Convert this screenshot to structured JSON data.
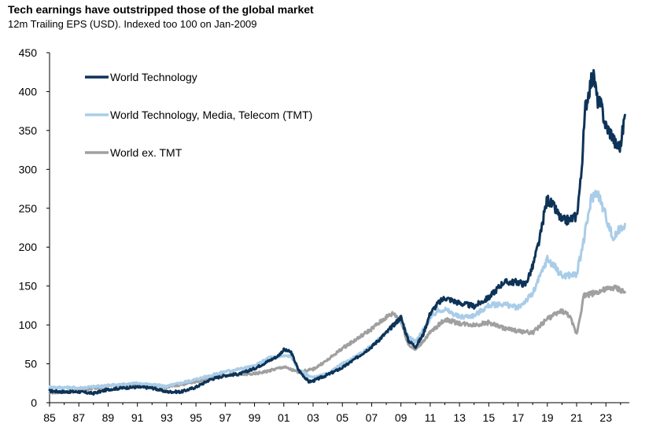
{
  "chart_data": {
    "type": "line",
    "title": "Tech earnings have outstripped those of the global market",
    "subtitle": "12m Trailing EPS (USD). Indexed too 100 on Jan-2009",
    "xlabel": "",
    "ylabel": "",
    "ylim": [
      0,
      450
    ],
    "xlim": [
      1985,
      2024.6
    ],
    "yticks": [
      "0",
      "50",
      "100",
      "150",
      "200",
      "250",
      "300",
      "350",
      "400",
      "450"
    ],
    "xticks": [
      "85",
      "87",
      "89",
      "91",
      "93",
      "95",
      "97",
      "99",
      "01",
      "03",
      "05",
      "07",
      "09",
      "11",
      "13",
      "15",
      "17",
      "19",
      "21",
      "23"
    ],
    "legend_position": "top-left",
    "grid": false,
    "series": [
      {
        "name": "World Technology",
        "color": "#0d3357",
        "x": [
          1985,
          1986,
          1987,
          1988,
          1989,
          1990,
          1991,
          1992,
          1993,
          1994,
          1995,
          1996,
          1997,
          1998,
          1999,
          2000,
          2000.6,
          2001,
          2001.5,
          2002,
          2002.7,
          2003,
          2004,
          2005,
          2006,
          2007,
          2008,
          2008.5,
          2009,
          2009.5,
          2010,
          2010.5,
          2011,
          2011.5,
          2012,
          2013,
          2014,
          2015,
          2016,
          2017,
          2017.5,
          2018,
          2018.5,
          2018.8,
          2019,
          2019.5,
          2020,
          2020.5,
          2021,
          2021.3,
          2021.6,
          2022,
          2022.2,
          2022.4,
          2022.7,
          2023,
          2023.4,
          2023.7,
          2024,
          2024.3
        ],
        "values": [
          15,
          14,
          14,
          12,
          17,
          19,
          20,
          19,
          14,
          14,
          20,
          30,
          35,
          37,
          44,
          54,
          60,
          68,
          65,
          42,
          27,
          28,
          36,
          45,
          58,
          72,
          90,
          100,
          110,
          80,
          72,
          87,
          115,
          127,
          135,
          128,
          124,
          135,
          155,
          155,
          152,
          175,
          212,
          245,
          262,
          250,
          234,
          235,
          240,
          290,
          380,
          415,
          418,
          390,
          380,
          355,
          345,
          330,
          330,
          370
        ]
      },
      {
        "name": "World Technology, Media, Telecom (TMT)",
        "color": "#a9cde8",
        "x": [
          1985,
          1987,
          1989,
          1991,
          1993,
          1995,
          1997,
          1999,
          2000,
          2001,
          2001.5,
          2002,
          2003,
          2004,
          2005,
          2006,
          2007,
          2008,
          2009,
          2009.5,
          2010,
          2011,
          2011.5,
          2012,
          2013,
          2014,
          2015,
          2016,
          2017,
          2018,
          2019,
          2019.5,
          2020,
          2021,
          2021.5,
          2022,
          2022.4,
          2023,
          2023.5,
          2024,
          2024.3
        ],
        "values": [
          20,
          19,
          22,
          25,
          21,
          30,
          40,
          47,
          58,
          60,
          60,
          42,
          32,
          37,
          50,
          60,
          73,
          90,
          108,
          85,
          78,
          108,
          118,
          120,
          110,
          112,
          125,
          127,
          122,
          140,
          185,
          175,
          163,
          165,
          210,
          262,
          272,
          240,
          210,
          225,
          230
        ]
      },
      {
        "name": "World ex. TMT",
        "color": "#a0a0a0",
        "x": [
          1985,
          1987,
          1989,
          1991,
          1993,
          1995,
          1997,
          1999,
          2000,
          2001,
          2002,
          2003,
          2004,
          2005,
          2006,
          2007,
          2008,
          2008.5,
          2009,
          2009.5,
          2010,
          2011,
          2012,
          2013,
          2014,
          2015,
          2016,
          2017,
          2018,
          2019,
          2020,
          2020.5,
          2021,
          2021.5,
          2022,
          2022.5,
          2023,
          2023.5,
          2024,
          2024.3
        ],
        "values": [
          13,
          15,
          22,
          23,
          20,
          27,
          36,
          37,
          41,
          46,
          39,
          43,
          55,
          70,
          82,
          95,
          110,
          115,
          105,
          75,
          68,
          90,
          107,
          102,
          100,
          103,
          96,
          92,
          90,
          108,
          118,
          112,
          88,
          138,
          140,
          143,
          145,
          148,
          145,
          142
        ]
      }
    ]
  }
}
